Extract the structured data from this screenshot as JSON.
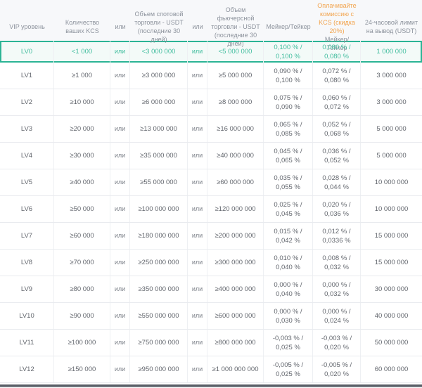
{
  "table": {
    "columns": [
      {
        "id": "vip-level",
        "label": "VIP уровень"
      },
      {
        "id": "kcs-amount",
        "label": "Количество ваших KCS"
      },
      {
        "id": "or-1",
        "label": "или"
      },
      {
        "id": "spot-volume",
        "label": "Объем спотовой торговли - USDT (последние 30 дней)"
      },
      {
        "id": "or-2",
        "label": "или"
      },
      {
        "id": "futures-volume",
        "label": "Объем фьючерсной торговли - USDT (последние 30 дней)"
      },
      {
        "id": "maker-taker",
        "label": "Мейкер/Тейкер"
      },
      {
        "id": "kcs-pay-discount",
        "label_accent": "Оплачивайте комиссию с KCS (скидка 20%)",
        "label": "Мейкер/Тейкер"
      },
      {
        "id": "withdrawal-limit",
        "label": "24-часовой лимит на вывод (USDT)"
      }
    ],
    "rows": [
      {
        "level": "LV0",
        "kcs": "<1 000",
        "or1": "или",
        "spot": "<3 000 000",
        "or2": "или",
        "futures": "<5 000 000",
        "maker_taker": "0,100 % / 0,100 %",
        "kcs_discount": "0,080 % / 0,080 %",
        "limit": "1 000 000",
        "highlighted": true
      },
      {
        "level": "LV1",
        "kcs": "≥1 000",
        "or1": "или",
        "spot": "≥3 000 000",
        "or2": "или",
        "futures": "≥5 000 000",
        "maker_taker": "0,090 % / 0,100 %",
        "kcs_discount": "0,072 % / 0,080 %",
        "limit": "3 000 000",
        "highlighted": false
      },
      {
        "level": "LV2",
        "kcs": "≥10 000",
        "or1": "или",
        "spot": "≥6 000 000",
        "or2": "или",
        "futures": "≥8 000 000",
        "maker_taker": "0,075 % / 0,090 %",
        "kcs_discount": "0,060 % / 0,072 %",
        "limit": "3 000 000",
        "highlighted": false
      },
      {
        "level": "LV3",
        "kcs": "≥20 000",
        "or1": "или",
        "spot": "≥13 000 000",
        "or2": "или",
        "futures": "≥16 000 000",
        "maker_taker": "0,065 % / 0,085 %",
        "kcs_discount": "0,052 % / 0,068 %",
        "limit": "5 000 000",
        "highlighted": false
      },
      {
        "level": "LV4",
        "kcs": "≥30 000",
        "or1": "или",
        "spot": "≥35 000 000",
        "or2": "или",
        "futures": "≥40 000 000",
        "maker_taker": "0,045 % / 0,065 %",
        "kcs_discount": "0,036 % / 0,052 %",
        "limit": "5 000 000",
        "highlighted": false
      },
      {
        "level": "LV5",
        "kcs": "≥40 000",
        "or1": "или",
        "spot": "≥55 000 000",
        "or2": "или",
        "futures": "≥60 000 000",
        "maker_taker": "0,035 % / 0,055 %",
        "kcs_discount": "0,028 % / 0,044 %",
        "limit": "10 000 000",
        "highlighted": false
      },
      {
        "level": "LV6",
        "kcs": "≥50 000",
        "or1": "или",
        "spot": "≥100 000 000",
        "or2": "или",
        "futures": "≥120 000 000",
        "maker_taker": "0,025 % / 0,045 %",
        "kcs_discount": "0,020 % / 0,036 %",
        "limit": "10 000 000",
        "highlighted": false
      },
      {
        "level": "LV7",
        "kcs": "≥60 000",
        "or1": "или",
        "spot": "≥180 000 000",
        "or2": "или",
        "futures": "≥200 000 000",
        "maker_taker": "0,015 % / 0,042 %",
        "kcs_discount": "0,012 % / 0,0336 %",
        "limit": "15 000 000",
        "highlighted": false
      },
      {
        "level": "LV8",
        "kcs": "≥70 000",
        "or1": "или",
        "spot": "≥250 000 000",
        "or2": "или",
        "futures": "≥300 000 000",
        "maker_taker": "0,010 % / 0,040 %",
        "kcs_discount": "0,008 % / 0,032 %",
        "limit": "15 000 000",
        "highlighted": false
      },
      {
        "level": "LV9",
        "kcs": "≥80 000",
        "or1": "или",
        "spot": "≥350 000 000",
        "or2": "или",
        "futures": "≥400 000 000",
        "maker_taker": "0,000 % / 0,040 %",
        "kcs_discount": "0,000 % / 0,032 %",
        "limit": "30 000 000",
        "highlighted": false
      },
      {
        "level": "LV10",
        "kcs": "≥90 000",
        "or1": "или",
        "spot": "≥550 000 000",
        "or2": "или",
        "futures": "≥600 000 000",
        "maker_taker": "0,000 % / 0,030 %",
        "kcs_discount": "0,000 % / 0,024 %",
        "limit": "40 000 000",
        "highlighted": false
      },
      {
        "level": "LV11",
        "kcs": "≥100 000",
        "or1": "или",
        "spot": "≥750 000 000",
        "or2": "или",
        "futures": "≥800 000 000",
        "maker_taker": "-0,003 % / 0,025 %",
        "kcs_discount": "-0,003 % / 0,020 %",
        "limit": "50 000 000",
        "highlighted": false
      },
      {
        "level": "LV12",
        "kcs": "≥150 000",
        "or1": "или",
        "spot": "≥950 000 000",
        "or2": "или",
        "futures": "≥1 000 000 000",
        "maker_taker": "-0,005 % / 0,025 %",
        "kcs_discount": "-0,005 % / 0,020 %",
        "limit": "60 000 000",
        "highlighted": false
      }
    ]
  },
  "colors": {
    "accent_teal": "#2bb495",
    "teal_text": "#41bd9e",
    "teal_row_bg": "#f3faf8",
    "accent_orange": "#f2a44e",
    "header_bg": "#f7f8fa",
    "header_text": "#8d939d",
    "body_text": "#63676e",
    "row_border": "#e9ebef",
    "bottom_bar": "#595e66"
  }
}
